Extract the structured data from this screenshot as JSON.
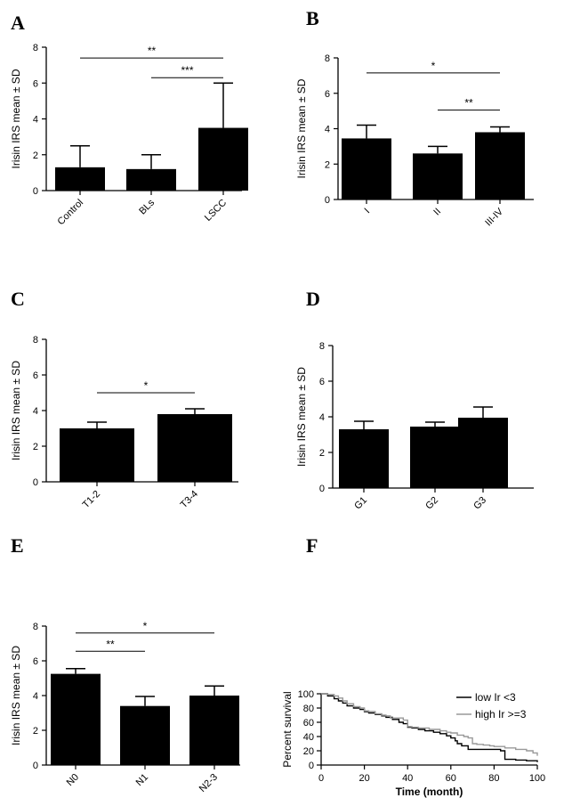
{
  "chart_data": [
    {
      "panel": "A",
      "type": "bar",
      "categories": [
        "Control",
        "BLs",
        "LSCC"
      ],
      "values": [
        1.3,
        1.2,
        3.5
      ],
      "errors": [
        1.2,
        0.8,
        2.5
      ],
      "ylabel": "Irisin IRS mean ± SD",
      "xlabel": "",
      "ylim": [
        0,
        8
      ],
      "yticks": [
        "0",
        "2",
        "4",
        "6",
        "8"
      ],
      "significance": [
        {
          "from": 0,
          "to": 2,
          "y": 7.4,
          "label": "**"
        },
        {
          "from": 1,
          "to": 2,
          "y": 6.3,
          "label": "***"
        }
      ]
    },
    {
      "panel": "B",
      "type": "bar",
      "categories": [
        "I",
        "II",
        "III-IV"
      ],
      "values": [
        3.45,
        2.6,
        3.8
      ],
      "errors": [
        0.75,
        0.4,
        0.3
      ],
      "ylabel": "Irisin IRS mean ± SD",
      "xlabel": "",
      "ylim": [
        0,
        8
      ],
      "yticks": [
        "0",
        "2",
        "4",
        "6",
        "8"
      ],
      "significance": [
        {
          "from": 0,
          "to": 2,
          "y": 7.15,
          "label": "*"
        },
        {
          "from": 1,
          "to": 2,
          "y": 5.05,
          "label": "**"
        }
      ]
    },
    {
      "panel": "C",
      "type": "bar",
      "categories": [
        "T1-2",
        "T3-4"
      ],
      "values": [
        3.0,
        3.8
      ],
      "errors": [
        0.35,
        0.3
      ],
      "ylabel": "Irisin IRS mean ± SD",
      "xlabel": "",
      "ylim": [
        0,
        8
      ],
      "yticks": [
        "0",
        "2",
        "4",
        "6",
        "8"
      ],
      "significance": [
        {
          "from": 0,
          "to": 1,
          "y": 5.0,
          "label": "*"
        }
      ]
    },
    {
      "panel": "D",
      "type": "bar",
      "categories": [
        "G1",
        "G2",
        "G3"
      ],
      "values": [
        3.3,
        3.45,
        3.95
      ],
      "errors": [
        0.45,
        0.25,
        0.6
      ],
      "ylabel": "Irisin IRS mean ± SD",
      "xlabel": "",
      "ylim": [
        0,
        8
      ],
      "yticks": [
        "0",
        "2",
        "4",
        "6",
        "8"
      ],
      "significance": []
    },
    {
      "panel": "E",
      "type": "bar",
      "categories": [
        "N0",
        "N1",
        "N2-3"
      ],
      "values": [
        5.25,
        3.4,
        4.0
      ],
      "errors": [
        0.3,
        0.55,
        0.55
      ],
      "ylabel": "Irisin IRS mean ± SD",
      "xlabel": "",
      "ylim": [
        0,
        8
      ],
      "yticks": [
        "0",
        "2",
        "4",
        "6",
        "8"
      ],
      "significance": [
        {
          "from": 0,
          "to": 2,
          "y": 7.6,
          "label": "*"
        },
        {
          "from": 0,
          "to": 1,
          "y": 6.55,
          "label": "**"
        }
      ]
    },
    {
      "panel": "F",
      "type": "line",
      "xlabel": "Time (month)",
      "ylabel": "Percent survival",
      "xlim": [
        0,
        100
      ],
      "ylim": [
        0,
        100
      ],
      "xticks": [
        "0",
        "20",
        "40",
        "60",
        "80",
        "100"
      ],
      "yticks": [
        "0",
        "20",
        "40",
        "60",
        "80",
        "100"
      ],
      "series": [
        {
          "name": "low Ir <3",
          "color": "#000000",
          "x": [
            0,
            3,
            6,
            8,
            10,
            12,
            15,
            18,
            20,
            22,
            25,
            28,
            30,
            33,
            36,
            38,
            40,
            42,
            45,
            48,
            52,
            55,
            58,
            60,
            62,
            63,
            65,
            68,
            70,
            75,
            80,
            83,
            85,
            90,
            95,
            100
          ],
          "y": [
            100,
            97,
            93,
            90,
            87,
            83,
            80,
            78,
            75,
            73,
            71,
            69,
            67,
            64,
            60,
            58,
            53,
            52,
            50,
            48,
            46,
            44,
            41,
            38,
            34,
            30,
            27,
            22,
            22,
            22,
            22,
            20,
            8,
            7,
            6,
            4
          ]
        },
        {
          "name": "high Ir >=3",
          "color": "#999999",
          "x": [
            0,
            3,
            6,
            8,
            10,
            12,
            15,
            18,
            20,
            22,
            25,
            28,
            30,
            32,
            35,
            38,
            40,
            42,
            45,
            50,
            55,
            58,
            60,
            63,
            66,
            68,
            70,
            72,
            75,
            78,
            80,
            85,
            90,
            95,
            98,
            100
          ],
          "y": [
            100,
            99,
            97,
            94,
            90,
            86,
            82,
            80,
            76,
            75,
            72,
            70,
            69,
            66,
            66,
            63,
            54,
            53,
            52,
            50,
            48,
            46,
            45,
            42,
            40,
            38,
            30,
            29,
            28,
            27,
            26,
            24,
            22,
            20,
            17,
            13
          ]
        }
      ]
    }
  ],
  "panel_letters": [
    "A",
    "B",
    "C",
    "D",
    "E",
    "F"
  ]
}
